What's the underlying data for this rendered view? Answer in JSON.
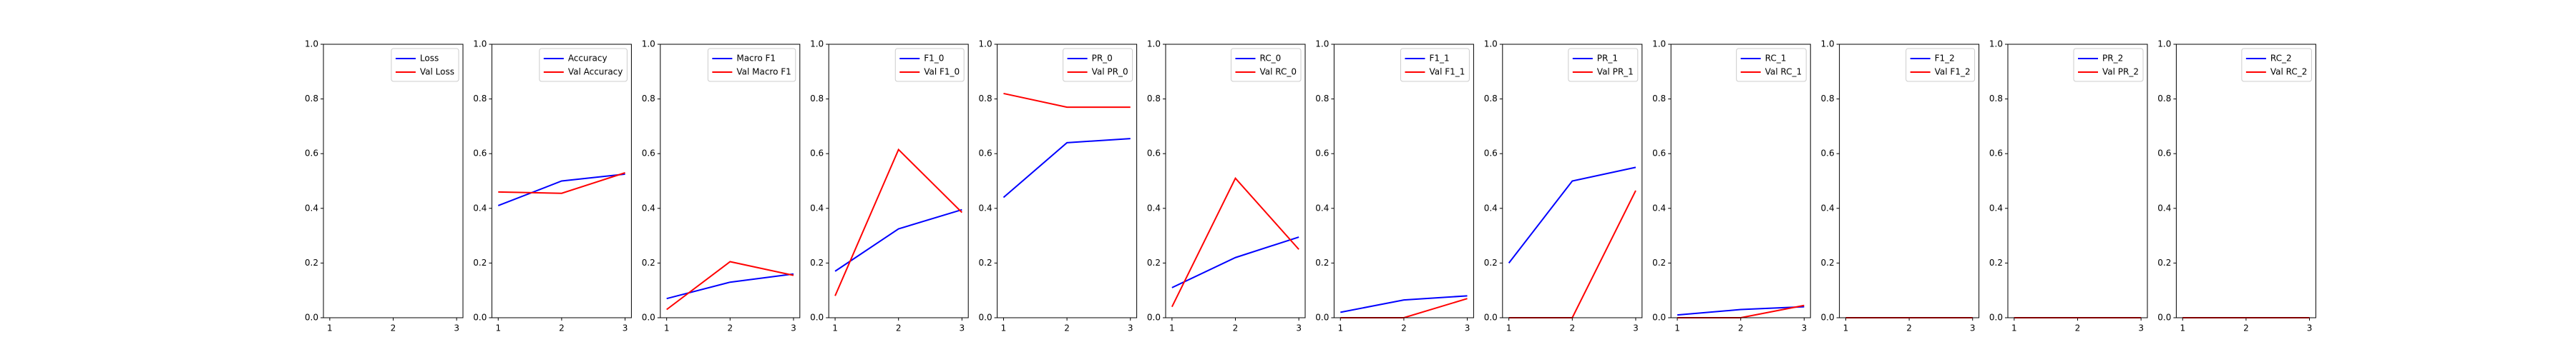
{
  "chart_data": [
    {
      "type": "line",
      "x": [
        1,
        2,
        3
      ],
      "xlim": [
        0.9,
        3.1
      ],
      "xticks": [
        1,
        2,
        3
      ],
      "ylim": [
        0,
        1
      ],
      "yticks": [
        {
          "value": 0,
          "label": "0.0"
        },
        0.2,
        0.4,
        0.6,
        0.8,
        {
          "value": 1,
          "label": "1.0"
        }
      ],
      "legend": "upper right",
      "series": [
        {
          "name": "Loss",
          "color": "#0000ff",
          "values": [
            null,
            null,
            null
          ]
        },
        {
          "name": "Val Loss",
          "color": "#ff0000",
          "values": [
            null,
            null,
            null
          ]
        }
      ]
    },
    {
      "type": "line",
      "x": [
        1,
        2,
        3
      ],
      "xlim": [
        0.9,
        3.1
      ],
      "xticks": [
        1,
        2,
        3
      ],
      "ylim": [
        0,
        1
      ],
      "yticks": [
        {
          "value": 0,
          "label": "0.0"
        },
        0.2,
        0.4,
        0.6,
        0.8,
        {
          "value": 1,
          "label": "1.0"
        }
      ],
      "legend": "upper right",
      "series": [
        {
          "name": "Accuracy",
          "color": "#0000ff",
          "values": [
            0.41,
            0.5,
            0.525
          ]
        },
        {
          "name": "Val Accuracy",
          "color": "#ff0000",
          "values": [
            0.46,
            0.455,
            0.53
          ]
        }
      ]
    },
    {
      "type": "line",
      "x": [
        1,
        2,
        3
      ],
      "xlim": [
        0.9,
        3.1
      ],
      "xticks": [
        1,
        2,
        3
      ],
      "ylim": [
        0,
        1
      ],
      "yticks": [
        {
          "value": 0,
          "label": "0.0"
        },
        0.2,
        0.4,
        0.6,
        0.8,
        {
          "value": 1,
          "label": "1.0"
        }
      ],
      "legend": "upper right",
      "series": [
        {
          "name": "Macro F1",
          "color": "#0000ff",
          "values": [
            0.07,
            0.13,
            0.16
          ]
        },
        {
          "name": "Val Macro F1",
          "color": "#ff0000",
          "values": [
            0.03,
            0.205,
            0.155
          ]
        }
      ]
    },
    {
      "type": "line",
      "x": [
        1,
        2,
        3
      ],
      "xlim": [
        0.9,
        3.1
      ],
      "xticks": [
        1,
        2,
        3
      ],
      "ylim": [
        0,
        1
      ],
      "yticks": [
        {
          "value": 0,
          "label": "0.0"
        },
        0.2,
        0.4,
        0.6,
        0.8,
        {
          "value": 1,
          "label": "1.0"
        }
      ],
      "legend": "upper right",
      "series": [
        {
          "name": "F1_0",
          "color": "#0000ff",
          "values": [
            0.17,
            0.325,
            0.395
          ]
        },
        {
          "name": "Val F1_0",
          "color": "#ff0000",
          "values": [
            0.08,
            0.615,
            0.385
          ]
        }
      ]
    },
    {
      "type": "line",
      "x": [
        1,
        2,
        3
      ],
      "xlim": [
        0.9,
        3.1
      ],
      "xticks": [
        1,
        2,
        3
      ],
      "ylim": [
        0,
        1
      ],
      "yticks": [
        {
          "value": 0,
          "label": "0.0"
        },
        0.2,
        0.4,
        0.6,
        0.8,
        {
          "value": 1,
          "label": "1.0"
        }
      ],
      "legend": "upper right",
      "series": [
        {
          "name": "PR_0",
          "color": "#0000ff",
          "values": [
            0.44,
            0.64,
            0.655
          ]
        },
        {
          "name": "Val PR_0",
          "color": "#ff0000",
          "values": [
            0.82,
            0.77,
            0.77
          ]
        }
      ]
    },
    {
      "type": "line",
      "x": [
        1,
        2,
        3
      ],
      "xlim": [
        0.9,
        3.1
      ],
      "xticks": [
        1,
        2,
        3
      ],
      "ylim": [
        0,
        1
      ],
      "yticks": [
        {
          "value": 0,
          "label": "0.0"
        },
        0.2,
        0.4,
        0.6,
        0.8,
        {
          "value": 1,
          "label": "1.0"
        }
      ],
      "legend": "upper right",
      "series": [
        {
          "name": "RC_0",
          "color": "#0000ff",
          "values": [
            0.11,
            0.22,
            0.295
          ]
        },
        {
          "name": "Val RC_0",
          "color": "#ff0000",
          "values": [
            0.04,
            0.51,
            0.25
          ]
        }
      ]
    },
    {
      "type": "line",
      "x": [
        1,
        2,
        3
      ],
      "xlim": [
        0.9,
        3.1
      ],
      "xticks": [
        1,
        2,
        3
      ],
      "ylim": [
        0,
        1
      ],
      "yticks": [
        {
          "value": 0,
          "label": "0.0"
        },
        0.2,
        0.4,
        0.6,
        0.8,
        {
          "value": 1,
          "label": "1.0"
        }
      ],
      "legend": "upper right",
      "series": [
        {
          "name": "F1_1",
          "color": "#0000ff",
          "values": [
            0.02,
            0.065,
            0.08
          ]
        },
        {
          "name": "Val F1_1",
          "color": "#ff0000",
          "values": [
            0,
            0,
            0.07
          ]
        }
      ]
    },
    {
      "type": "line",
      "x": [
        1,
        2,
        3
      ],
      "xlim": [
        0.9,
        3.1
      ],
      "xticks": [
        1,
        2,
        3
      ],
      "ylim": [
        0,
        1
      ],
      "yticks": [
        {
          "value": 0,
          "label": "0.0"
        },
        0.2,
        0.4,
        0.6,
        0.8,
        {
          "value": 1,
          "label": "1.0"
        }
      ],
      "legend": "upper right",
      "series": [
        {
          "name": "PR_1",
          "color": "#0000ff",
          "values": [
            0.2,
            0.5,
            0.55
          ]
        },
        {
          "name": "Val PR_1",
          "color": "#ff0000",
          "values": [
            0,
            0,
            0.465
          ]
        }
      ]
    },
    {
      "type": "line",
      "x": [
        1,
        2,
        3
      ],
      "xlim": [
        0.9,
        3.1
      ],
      "xticks": [
        1,
        2,
        3
      ],
      "ylim": [
        0,
        1
      ],
      "yticks": [
        {
          "value": 0,
          "label": "0.0"
        },
        0.2,
        0.4,
        0.6,
        0.8,
        {
          "value": 1,
          "label": "1.0"
        }
      ],
      "legend": "upper right",
      "series": [
        {
          "name": "RC_1",
          "color": "#0000ff",
          "values": [
            0.01,
            0.03,
            0.04
          ]
        },
        {
          "name": "Val RC_1",
          "color": "#ff0000",
          "values": [
            0,
            0,
            0.045
          ]
        }
      ]
    },
    {
      "type": "line",
      "x": [
        1,
        2,
        3
      ],
      "xlim": [
        0.9,
        3.1
      ],
      "xticks": [
        1,
        2,
        3
      ],
      "ylim": [
        0,
        1
      ],
      "yticks": [
        {
          "value": 0,
          "label": "0.0"
        },
        0.2,
        0.4,
        0.6,
        0.8,
        {
          "value": 1,
          "label": "1.0"
        }
      ],
      "legend": "upper right",
      "series": [
        {
          "name": "F1_2",
          "color": "#0000ff",
          "values": [
            0,
            0,
            0
          ]
        },
        {
          "name": "Val F1_2",
          "color": "#ff0000",
          "values": [
            0,
            0,
            0
          ]
        }
      ]
    },
    {
      "type": "line",
      "x": [
        1,
        2,
        3
      ],
      "xlim": [
        0.9,
        3.1
      ],
      "xticks": [
        1,
        2,
        3
      ],
      "ylim": [
        0,
        1
      ],
      "yticks": [
        {
          "value": 0,
          "label": "0.0"
        },
        0.2,
        0.4,
        0.6,
        0.8,
        {
          "value": 1,
          "label": "1.0"
        }
      ],
      "legend": "upper right",
      "series": [
        {
          "name": "PR_2",
          "color": "#0000ff",
          "values": [
            0,
            0,
            0
          ]
        },
        {
          "name": "Val PR_2",
          "color": "#ff0000",
          "values": [
            0,
            0,
            0
          ]
        }
      ]
    },
    {
      "type": "line",
      "x": [
        1,
        2,
        3
      ],
      "xlim": [
        0.9,
        3.1
      ],
      "xticks": [
        1,
        2,
        3
      ],
      "ylim": [
        0,
        1
      ],
      "yticks": [
        {
          "value": 0,
          "label": "0.0"
        },
        0.2,
        0.4,
        0.6,
        0.8,
        {
          "value": 1,
          "label": "1.0"
        }
      ],
      "legend": "upper right",
      "series": [
        {
          "name": "RC_2",
          "color": "#0000ff",
          "values": [
            0,
            0,
            0
          ]
        },
        {
          "name": "Val RC_2",
          "color": "#ff0000",
          "values": [
            0,
            0,
            0
          ]
        }
      ]
    }
  ]
}
